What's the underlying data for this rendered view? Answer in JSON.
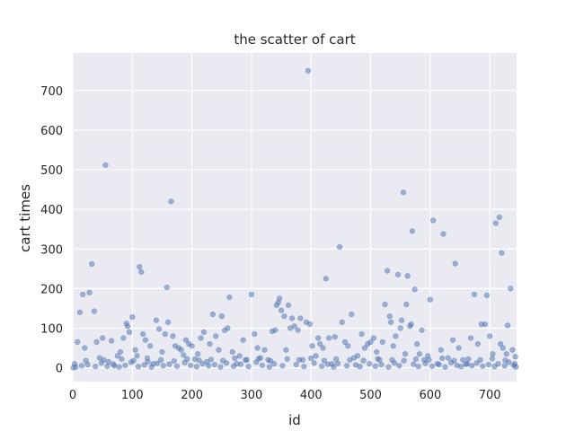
{
  "chart_data": {
    "type": "scatter",
    "title": "the scatter of cart",
    "xlabel": "id",
    "ylabel": "cart times",
    "xlim": [
      0,
      745
    ],
    "ylim": [
      -35,
      795
    ],
    "xticks": [
      0,
      100,
      200,
      300,
      400,
      500,
      600,
      700
    ],
    "yticks": [
      0,
      100,
      200,
      300,
      400,
      500,
      600,
      700
    ],
    "grid": true,
    "colors": {
      "background": "#eaeaf2",
      "grid": "#ffffff",
      "point": "#4c72b0"
    },
    "points": [
      [
        5,
        2
      ],
      [
        8,
        65
      ],
      [
        12,
        140
      ],
      [
        17,
        185
      ],
      [
        20,
        50
      ],
      [
        28,
        190
      ],
      [
        32,
        262
      ],
      [
        36,
        143
      ],
      [
        40,
        65
      ],
      [
        45,
        25
      ],
      [
        50,
        75
      ],
      [
        55,
        512
      ],
      [
        60,
        15
      ],
      [
        65,
        68
      ],
      [
        70,
        5
      ],
      [
        75,
        30
      ],
      [
        80,
        40
      ],
      [
        85,
        75
      ],
      [
        90,
        112
      ],
      [
        92,
        105
      ],
      [
        95,
        90
      ],
      [
        100,
        128
      ],
      [
        105,
        45
      ],
      [
        108,
        30
      ],
      [
        112,
        255
      ],
      [
        115,
        242
      ],
      [
        118,
        85
      ],
      [
        122,
        70
      ],
      [
        126,
        15
      ],
      [
        130,
        55
      ],
      [
        135,
        10
      ],
      [
        140,
        120
      ],
      [
        145,
        98
      ],
      [
        150,
        40
      ],
      [
        155,
        85
      ],
      [
        158,
        203
      ],
      [
        160,
        115
      ],
      [
        165,
        420
      ],
      [
        168,
        80
      ],
      [
        172,
        55
      ],
      [
        178,
        50
      ],
      [
        182,
        45
      ],
      [
        186,
        32
      ],
      [
        190,
        70
      ],
      [
        195,
        60
      ],
      [
        200,
        55
      ],
      [
        205,
        22
      ],
      [
        210,
        35
      ],
      [
        215,
        75
      ],
      [
        220,
        90
      ],
      [
        225,
        15
      ],
      [
        230,
        60
      ],
      [
        235,
        135
      ],
      [
        240,
        80
      ],
      [
        245,
        45
      ],
      [
        250,
        130
      ],
      [
        255,
        95
      ],
      [
        260,
        100
      ],
      [
        263,
        178
      ],
      [
        268,
        40
      ],
      [
        275,
        10
      ],
      [
        280,
        30
      ],
      [
        286,
        70
      ],
      [
        292,
        20
      ],
      [
        300,
        185
      ],
      [
        305,
        85
      ],
      [
        310,
        50
      ],
      [
        315,
        25
      ],
      [
        322,
        45
      ],
      [
        328,
        20
      ],
      [
        335,
        92
      ],
      [
        340,
        95
      ],
      [
        342,
        158
      ],
      [
        345,
        165
      ],
      [
        347,
        175
      ],
      [
        350,
        145
      ],
      [
        355,
        130
      ],
      [
        358,
        45
      ],
      [
        362,
        158
      ],
      [
        365,
        100
      ],
      [
        368,
        125
      ],
      [
        372,
        105
      ],
      [
        378,
        95
      ],
      [
        382,
        125
      ],
      [
        386,
        20
      ],
      [
        392,
        115
      ],
      [
        395,
        750
      ],
      [
        398,
        110
      ],
      [
        402,
        55
      ],
      [
        408,
        30
      ],
      [
        412,
        75
      ],
      [
        415,
        60
      ],
      [
        420,
        50
      ],
      [
        425,
        225
      ],
      [
        430,
        75
      ],
      [
        435,
        10
      ],
      [
        440,
        78
      ],
      [
        448,
        305
      ],
      [
        452,
        115
      ],
      [
        457,
        65
      ],
      [
        462,
        55
      ],
      [
        468,
        135
      ],
      [
        472,
        25
      ],
      [
        478,
        30
      ],
      [
        485,
        85
      ],
      [
        490,
        50
      ],
      [
        495,
        60
      ],
      [
        500,
        65
      ],
      [
        505,
        75
      ],
      [
        510,
        40
      ],
      [
        515,
        20
      ],
      [
        520,
        65
      ],
      [
        524,
        160
      ],
      [
        528,
        245
      ],
      [
        532,
        130
      ],
      [
        534,
        115
      ],
      [
        538,
        55
      ],
      [
        542,
        80
      ],
      [
        546,
        235
      ],
      [
        550,
        100
      ],
      [
        552,
        120
      ],
      [
        555,
        443
      ],
      [
        558,
        35
      ],
      [
        560,
        160
      ],
      [
        562,
        232
      ],
      [
        566,
        105
      ],
      [
        568,
        110
      ],
      [
        570,
        345
      ],
      [
        574,
        198
      ],
      [
        578,
        60
      ],
      [
        582,
        35
      ],
      [
        586,
        95
      ],
      [
        590,
        20
      ],
      [
        596,
        30
      ],
      [
        600,
        172
      ],
      [
        605,
        372
      ],
      [
        612,
        10
      ],
      [
        618,
        45
      ],
      [
        622,
        338
      ],
      [
        630,
        25
      ],
      [
        638,
        70
      ],
      [
        642,
        263
      ],
      [
        648,
        50
      ],
      [
        655,
        20
      ],
      [
        662,
        10
      ],
      [
        668,
        75
      ],
      [
        674,
        185
      ],
      [
        680,
        60
      ],
      [
        686,
        110
      ],
      [
        692,
        110
      ],
      [
        695,
        183
      ],
      [
        700,
        80
      ],
      [
        705,
        35
      ],
      [
        710,
        365
      ],
      [
        716,
        380
      ],
      [
        718,
        60
      ],
      [
        720,
        290
      ],
      [
        722,
        50
      ],
      [
        728,
        35
      ],
      [
        730,
        107
      ],
      [
        735,
        200
      ],
      [
        738,
        45
      ],
      [
        742,
        10
      ],
      [
        3,
        10
      ],
      [
        15,
        5
      ],
      [
        25,
        8
      ],
      [
        38,
        3
      ],
      [
        48,
        12
      ],
      [
        58,
        4
      ],
      [
        68,
        9
      ],
      [
        78,
        2
      ],
      [
        88,
        6
      ],
      [
        98,
        14
      ],
      [
        110,
        3
      ],
      [
        120,
        7
      ],
      [
        132,
        2
      ],
      [
        142,
        11
      ],
      [
        152,
        5
      ],
      [
        162,
        9
      ],
      [
        175,
        4
      ],
      [
        188,
        13
      ],
      [
        198,
        6
      ],
      [
        208,
        3
      ],
      [
        218,
        10
      ],
      [
        228,
        5
      ],
      [
        238,
        8
      ],
      [
        248,
        2
      ],
      [
        258,
        12
      ],
      [
        270,
        4
      ],
      [
        282,
        9
      ],
      [
        295,
        3
      ],
      [
        308,
        14
      ],
      [
        318,
        6
      ],
      [
        330,
        2
      ],
      [
        338,
        10
      ],
      [
        352,
        5
      ],
      [
        375,
        8
      ],
      [
        388,
        3
      ],
      [
        405,
        12
      ],
      [
        418,
        4
      ],
      [
        428,
        9
      ],
      [
        438,
        2
      ],
      [
        445,
        11
      ],
      [
        460,
        5
      ],
      [
        475,
        7
      ],
      [
        482,
        3
      ],
      [
        498,
        10
      ],
      [
        508,
        4
      ],
      [
        518,
        8
      ],
      [
        530,
        2
      ],
      [
        540,
        12
      ],
      [
        548,
        5
      ],
      [
        572,
        9
      ],
      [
        580,
        3
      ],
      [
        592,
        11
      ],
      [
        603,
        4
      ],
      [
        615,
        8
      ],
      [
        625,
        2
      ],
      [
        635,
        13
      ],
      [
        645,
        6
      ],
      [
        652,
        3
      ],
      [
        660,
        9
      ],
      [
        670,
        5
      ],
      [
        678,
        12
      ],
      [
        688,
        4
      ],
      [
        698,
        8
      ],
      [
        708,
        3
      ],
      [
        714,
        10
      ],
      [
        725,
        5
      ],
      [
        732,
        14
      ],
      [
        740,
        6
      ],
      [
        744,
        2
      ],
      [
        1,
        0
      ],
      [
        22,
        18
      ],
      [
        52,
        20
      ],
      [
        82,
        22
      ],
      [
        102,
        18
      ],
      [
        125,
        24
      ],
      [
        148,
        20
      ],
      [
        170,
        17
      ],
      [
        192,
        22
      ],
      [
        212,
        19
      ],
      [
        232,
        21
      ],
      [
        252,
        18
      ],
      [
        272,
        24
      ],
      [
        290,
        20
      ],
      [
        312,
        23
      ],
      [
        332,
        17
      ],
      [
        360,
        22
      ],
      [
        380,
        20
      ],
      [
        400,
        24
      ],
      [
        422,
        18
      ],
      [
        442,
        22
      ],
      [
        465,
        20
      ],
      [
        488,
        18
      ],
      [
        512,
        23
      ],
      [
        536,
        20
      ],
      [
        556,
        18
      ],
      [
        576,
        22
      ],
      [
        598,
        20
      ],
      [
        620,
        24
      ],
      [
        640,
        18
      ],
      [
        664,
        22
      ],
      [
        684,
        20
      ],
      [
        704,
        23
      ],
      [
        726,
        19
      ],
      [
        743,
        28
      ]
    ]
  }
}
